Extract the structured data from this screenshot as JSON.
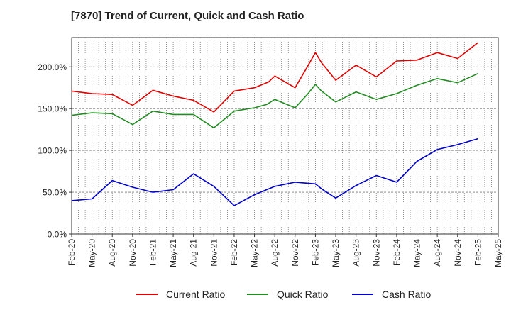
{
  "chart_data": {
    "type": "line",
    "title": "[7870]  Trend of Current, Quick and Cash Ratio",
    "xlabel": "",
    "ylabel": "",
    "ylim": [
      0,
      235
    ],
    "yticks": [
      0,
      50,
      100,
      150,
      200
    ],
    "ytick_labels": [
      "0.0%",
      "50.0%",
      "100.0%",
      "150.0%",
      "200.0%"
    ],
    "x_tick_labels": [
      "Feb-20",
      "May-20",
      "Aug-20",
      "Nov-20",
      "Feb-21",
      "May-21",
      "Aug-21",
      "Nov-21",
      "Feb-22",
      "May-22",
      "Aug-22",
      "Nov-22",
      "Feb-23",
      "May-23",
      "Aug-23",
      "Nov-23",
      "Feb-24",
      "May-24",
      "Aug-24",
      "Nov-24",
      "Feb-25",
      "May-25"
    ],
    "grid": true,
    "legend_position": "bottom",
    "series": [
      {
        "name": "Current Ratio",
        "color": "#e00000",
        "points": [
          [
            0,
            171
          ],
          [
            1,
            168
          ],
          [
            2,
            167
          ],
          [
            3,
            154
          ],
          [
            4,
            172
          ],
          [
            5,
            165
          ],
          [
            6,
            160
          ],
          [
            7,
            146
          ],
          [
            8,
            171
          ],
          [
            9,
            175
          ],
          [
            9.7,
            182
          ],
          [
            10,
            189
          ],
          [
            11,
            175
          ],
          [
            11.6,
            200
          ],
          [
            12,
            217
          ],
          [
            12.3,
            205
          ],
          [
            13,
            184
          ],
          [
            14,
            202
          ],
          [
            15,
            188
          ],
          [
            16,
            207
          ],
          [
            17,
            208
          ],
          [
            18,
            217
          ],
          [
            19,
            210
          ],
          [
            20,
            229
          ]
        ]
      },
      {
        "name": "Quick Ratio",
        "color": "#228b22",
        "points": [
          [
            0,
            142
          ],
          [
            1,
            145
          ],
          [
            2,
            144
          ],
          [
            3,
            131
          ],
          [
            4,
            147
          ],
          [
            5,
            143
          ],
          [
            6,
            143
          ],
          [
            7,
            127
          ],
          [
            8,
            147
          ],
          [
            9,
            151
          ],
          [
            9.6,
            155
          ],
          [
            10,
            161
          ],
          [
            11,
            151
          ],
          [
            11.6,
            167
          ],
          [
            12,
            179
          ],
          [
            12.3,
            171
          ],
          [
            13,
            158
          ],
          [
            14,
            170
          ],
          [
            15,
            161
          ],
          [
            16,
            168
          ],
          [
            17,
            178
          ],
          [
            18,
            186
          ],
          [
            19,
            181
          ],
          [
            20,
            192
          ]
        ]
      },
      {
        "name": "Cash Ratio",
        "color": "#0000cc",
        "points": [
          [
            0,
            40
          ],
          [
            1,
            42
          ],
          [
            2,
            64
          ],
          [
            3,
            56
          ],
          [
            4,
            50
          ],
          [
            5,
            53
          ],
          [
            6,
            72
          ],
          [
            7,
            57
          ],
          [
            8,
            34
          ],
          [
            9,
            47
          ],
          [
            9.6,
            53
          ],
          [
            10,
            57
          ],
          [
            11,
            62
          ],
          [
            12,
            60
          ],
          [
            12.3,
            54
          ],
          [
            13,
            43
          ],
          [
            13.6,
            52
          ],
          [
            14,
            58
          ],
          [
            15,
            70
          ],
          [
            16,
            62
          ],
          [
            16.6,
            77
          ],
          [
            17,
            87
          ],
          [
            18,
            101
          ],
          [
            19,
            107
          ],
          [
            20,
            114
          ]
        ]
      }
    ]
  }
}
